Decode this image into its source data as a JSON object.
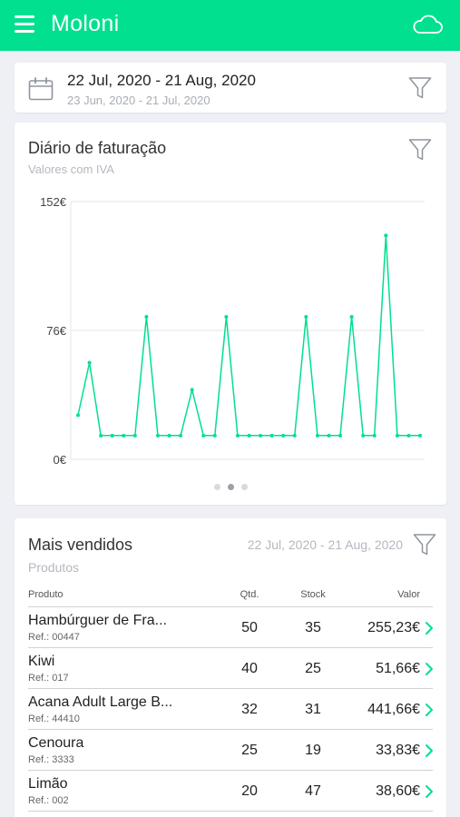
{
  "app": {
    "title": "Moloni",
    "accent_color": "#00e08e",
    "menu_icon": "hamburger-menu-icon",
    "cloud_icon": "cloud-icon"
  },
  "period": {
    "main": "22 Jul, 2020 - 21 Aug, 2020",
    "compare": "23 Jun, 2020 - 21 Jul, 2020"
  },
  "daily_chart": {
    "title": "Diário de faturação",
    "subtitle": "Valores com IVA",
    "pagination": {
      "pages": 3,
      "active_index": 1
    }
  },
  "chart_data": {
    "type": "line",
    "title": "Diário de faturação",
    "subtitle": "Valores com IVA",
    "ylim": [
      0,
      152
    ],
    "y_ticks": [
      "152€",
      "76€",
      "0€"
    ],
    "y_tick_values": [
      152,
      76,
      0
    ],
    "grid": true,
    "color": "#00e08e",
    "series": [
      {
        "values": [
          26,
          57,
          14,
          14,
          14,
          14,
          84,
          14,
          14,
          14,
          41,
          14,
          14,
          84,
          14,
          14,
          14,
          14,
          14,
          14,
          84,
          14,
          14,
          14,
          84,
          14,
          14,
          132,
          14,
          14,
          14
        ]
      }
    ]
  },
  "top_sellers": {
    "title": "Mais vendidos",
    "period": "22 Jul, 2020 - 21 Aug, 2020",
    "subtitle": "Produtos",
    "columns": {
      "product": "Produto",
      "qty": "Qtd.",
      "stock": "Stock",
      "value": "Valor"
    },
    "rows": [
      {
        "name": "Hambúrguer de Fra...",
        "ref": "Ref.: 00447",
        "qty": "50",
        "stock": "35",
        "value": "255,23€"
      },
      {
        "name": "Kiwi",
        "ref": "Ref.: 017",
        "qty": "40",
        "stock": "25",
        "value": "51,66€"
      },
      {
        "name": "Acana Adult Large B...",
        "ref": "Ref.: 44410",
        "qty": "32",
        "stock": "31",
        "value": "441,66€"
      },
      {
        "name": "Cenoura",
        "ref": "Ref.: 3333",
        "qty": "25",
        "stock": "19",
        "value": "33,83€"
      },
      {
        "name": "Limão",
        "ref": "Ref.: 002",
        "qty": "20",
        "stock": "47",
        "value": "38,60€"
      }
    ]
  }
}
